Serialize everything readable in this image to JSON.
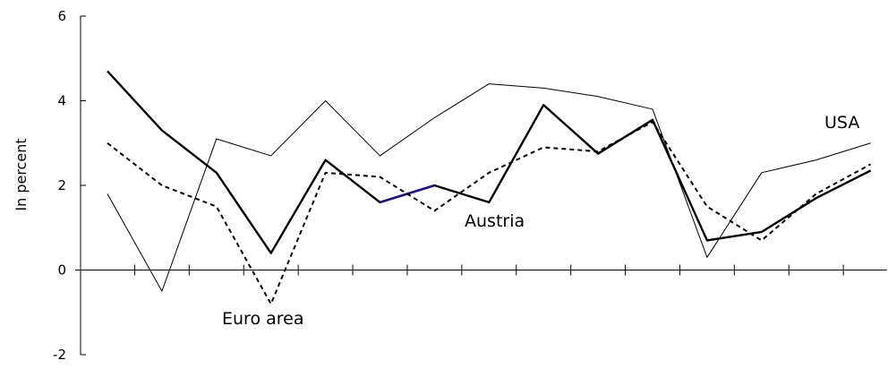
{
  "chart_data": {
    "type": "line",
    "ylabel": "In percent",
    "ylim": [
      -2,
      6
    ],
    "yticks": [
      -2,
      0,
      2,
      4,
      6
    ],
    "x": [
      1,
      2,
      3,
      4,
      5,
      6,
      7,
      8,
      9,
      10,
      11,
      12,
      13,
      14,
      15
    ],
    "xlim": [
      1,
      15.3
    ],
    "grid": false,
    "series": [
      {
        "name": "USA",
        "style": "thin-solid",
        "color": "#000000",
        "values": [
          1.8,
          -0.5,
          3.1,
          2.7,
          4.0,
          2.7,
          3.6,
          4.4,
          4.3,
          4.1,
          3.8,
          0.3,
          2.3,
          2.6,
          3.0
        ]
      },
      {
        "name": "Austria",
        "style": "thick-solid",
        "color": "#000000",
        "highlight_color": "#1a1a7a",
        "highlight_segment": [
          5,
          6
        ],
        "values": [
          4.7,
          3.3,
          2.3,
          0.4,
          2.6,
          1.6,
          2.0,
          1.6,
          3.9,
          2.75,
          3.55,
          0.7,
          0.9,
          1.7,
          2.35
        ]
      },
      {
        "name": "Euro area",
        "style": "dashed",
        "color": "#000000",
        "values": [
          3.0,
          2.0,
          1.5,
          -0.8,
          2.3,
          2.2,
          1.4,
          2.3,
          2.9,
          2.8,
          3.5,
          1.5,
          0.7,
          1.8,
          2.5
        ]
      }
    ]
  }
}
